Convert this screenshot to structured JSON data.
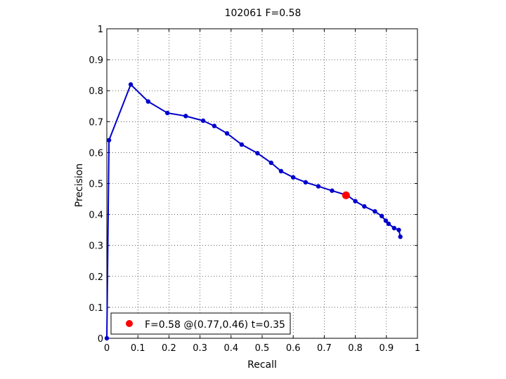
{
  "chart_data": {
    "type": "line",
    "title": "102061 F=0.58",
    "xlabel": "Recall",
    "ylabel": "Precision",
    "xlim": [
      0,
      1
    ],
    "ylim": [
      0,
      1
    ],
    "grid": true,
    "x_ticks": [
      "0",
      "0.1",
      "0.2",
      "0.3",
      "0.4",
      "0.5",
      "0.6",
      "0.7",
      "0.8",
      "0.9",
      "1"
    ],
    "y_ticks": [
      "0",
      "0.1",
      "0.2",
      "0.3",
      "0.4",
      "0.5",
      "0.6",
      "0.7",
      "0.8",
      "0.9",
      "1"
    ],
    "series": [
      {
        "color": "#0000cc",
        "points": [
          [
            0.0,
            0.0
          ],
          [
            0.007,
            0.64
          ],
          [
            0.077,
            0.82
          ],
          [
            0.133,
            0.765
          ],
          [
            0.195,
            0.728
          ],
          [
            0.254,
            0.718
          ],
          [
            0.31,
            0.703
          ],
          [
            0.346,
            0.686
          ],
          [
            0.387,
            0.662
          ],
          [
            0.434,
            0.626
          ],
          [
            0.485,
            0.598
          ],
          [
            0.529,
            0.567
          ],
          [
            0.561,
            0.54
          ],
          [
            0.6,
            0.52
          ],
          [
            0.64,
            0.504
          ],
          [
            0.681,
            0.491
          ],
          [
            0.725,
            0.477
          ],
          [
            0.774,
            0.462
          ],
          [
            0.8,
            0.443
          ],
          [
            0.829,
            0.426
          ],
          [
            0.863,
            0.41
          ],
          [
            0.885,
            0.395
          ],
          [
            0.898,
            0.38
          ],
          [
            0.907,
            0.37
          ],
          [
            0.925,
            0.356
          ],
          [
            0.94,
            0.35
          ],
          [
            0.945,
            0.328
          ]
        ]
      }
    ],
    "best_point": {
      "x": 0.77,
      "y": 0.462,
      "color": "#ff0000"
    },
    "legend": {
      "label": "F=0.58 @(0.77,0.46) t=0.35",
      "position": "bottom-left"
    }
  }
}
